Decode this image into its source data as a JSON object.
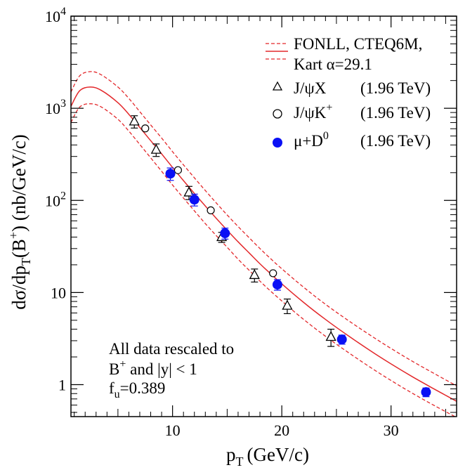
{
  "chart_data": {
    "type": "scatter",
    "xlabel": "p",
    "xlabel_sub": "T",
    "xlabel_unit": "(GeV/c)",
    "ylabel": "dσ/dp",
    "ylabel_sub": "T",
    "ylabel_mid": "(B",
    "ylabel_sup": "+",
    "ylabel_unit": ") (nb/GeV/c)",
    "xlim": [
      0.7,
      36
    ],
    "ylim": [
      0.45,
      10000
    ],
    "log_y": true,
    "grid": false,
    "x_ticks": [
      10,
      20,
      30
    ],
    "x_tick_labels": [
      "10",
      "20",
      "30"
    ],
    "y_ticks": [
      {
        "value": 1,
        "base": "1",
        "exp": ""
      },
      {
        "value": 10,
        "base": "10",
        "exp": ""
      },
      {
        "value": 100,
        "base": "10",
        "exp": "2"
      },
      {
        "value": 1000,
        "base": "10",
        "exp": "3"
      },
      {
        "value": 10000,
        "base": "10",
        "exp": "4"
      }
    ],
    "theory": {
      "name_line1": "FONLL, CTEQ6M,",
      "name_line2": "Kart α=29.1",
      "color": "#e3282b",
      "x": [
        0.7,
        1.5,
        2.5,
        3.5,
        5,
        6,
        7,
        8,
        9,
        10,
        11,
        12,
        13,
        14,
        15,
        16,
        17,
        18,
        19,
        20,
        22,
        24,
        26,
        28,
        30,
        32,
        34,
        36
      ],
      "central": [
        1050,
        1550,
        1700,
        1560,
        1150,
        860,
        620,
        445,
        320,
        228,
        164,
        119,
        87,
        64,
        47.5,
        35.5,
        27,
        20.5,
        15.9,
        12.4,
        7.8,
        5.1,
        3.45,
        2.38,
        1.68,
        1.21,
        0.89,
        0.66
      ],
      "upper": [
        1500,
        2250,
        2500,
        2300,
        1700,
        1280,
        920,
        660,
        475,
        338,
        243,
        176,
        128,
        94,
        69.5,
        52,
        39.5,
        30,
        23.2,
        18.1,
        11.4,
        7.45,
        5.05,
        3.5,
        2.47,
        1.78,
        1.31,
        0.97
      ],
      "lower": [
        700,
        1030,
        1120,
        1030,
        760,
        565,
        405,
        290,
        207,
        147,
        106,
        77,
        56,
        41.5,
        31,
        23,
        17.5,
        13.3,
        10.3,
        8.1,
        5.1,
        3.35,
        2.27,
        1.57,
        1.11,
        0.8,
        0.59,
        0.44
      ]
    },
    "series": [
      {
        "name": "J/ψX",
        "energy": "(1.96 TeV)",
        "marker": "triangle-open",
        "x": [
          6.5,
          8.5,
          11.5,
          14.5,
          17.5,
          20.5,
          24.5
        ],
        "y": [
          720,
          355,
          122,
          40,
          15.5,
          7.2,
          3.3
        ],
        "err": [
          110,
          55,
          20,
          5,
          2.5,
          1.3,
          0.7
        ]
      },
      {
        "name": "J/ψK",
        "name_sup": "+",
        "energy": "(1.96 TeV)",
        "marker": "circle-open",
        "x": [
          7.5,
          10.5,
          13.5,
          19.2
        ],
        "y": [
          605,
          213,
          78,
          16.2
        ],
        "err": [
          0,
          0,
          0,
          0
        ]
      },
      {
        "name": "μ+D",
        "name_sup": "0",
        "energy": "(1.96 TeV)",
        "marker": "circle-filled",
        "color": "#0a10f5",
        "x": [
          9.8,
          12,
          14.8,
          19.6,
          25.5,
          33.2
        ],
        "y": [
          195,
          102,
          44,
          12.2,
          3.1,
          0.83
        ],
        "err": [
          30,
          15,
          6,
          1.6,
          0.35,
          0.09
        ]
      }
    ],
    "annotation": {
      "line1": "All data rescaled to",
      "line2_pre": "B",
      "line2_sup": "+",
      "line2_post": " and |y| < 1",
      "line3_pre": "f",
      "line3_sub": "u",
      "line3_post": "=0.389"
    },
    "legend_position": "top-right"
  }
}
